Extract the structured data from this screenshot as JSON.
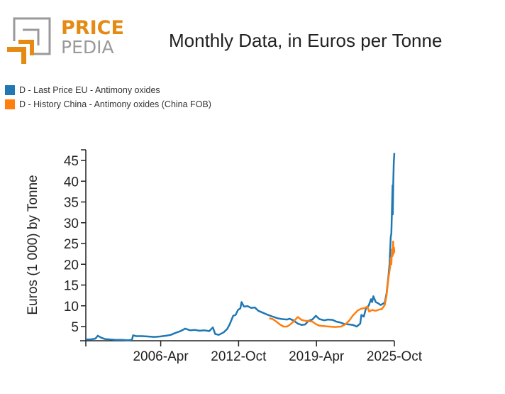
{
  "logo": {
    "line1": "PRICE",
    "line2": "PEDIA"
  },
  "chart_data": {
    "type": "line",
    "title": "Monthly Data, in Euros per Tonne",
    "xlabel": "",
    "ylabel": "Euros (1 000) by Tonne",
    "xlim": [
      2000.0,
      2025.75
    ],
    "ylim": [
      1.6,
      47
    ],
    "x_ticks": [
      {
        "label": "",
        "x": 2000.0
      },
      {
        "label": "2006-Apr",
        "x": 2006.25
      },
      {
        "label": "2012-Oct",
        "x": 2012.75
      },
      {
        "label": "2019-Apr",
        "x": 2019.25
      },
      {
        "label": "2025-Oct",
        "x": 2025.75
      }
    ],
    "y_ticks": [
      5,
      10,
      15,
      20,
      25,
      30,
      35,
      40,
      45
    ],
    "grid": false,
    "legend_position": "top-left",
    "series": [
      {
        "name": "D - Last Price EU - Antimony oxides",
        "color": "#1f77b4",
        "points": [
          [
            2000.0,
            1.9
          ],
          [
            2000.4,
            1.9
          ],
          [
            2000.8,
            2.1
          ],
          [
            2001.0,
            2.8
          ],
          [
            2001.3,
            2.3
          ],
          [
            2001.6,
            2.0
          ],
          [
            2002.0,
            1.9
          ],
          [
            2002.5,
            1.8
          ],
          [
            2003.0,
            1.8
          ],
          [
            2003.5,
            1.7
          ],
          [
            2003.85,
            1.8
          ],
          [
            2003.95,
            2.9
          ],
          [
            2004.2,
            2.7
          ],
          [
            2004.7,
            2.7
          ],
          [
            2005.2,
            2.6
          ],
          [
            2005.7,
            2.5
          ],
          [
            2006.2,
            2.6
          ],
          [
            2006.7,
            2.8
          ],
          [
            2007.1,
            3.0
          ],
          [
            2007.5,
            3.5
          ],
          [
            2007.9,
            3.9
          ],
          [
            2008.3,
            4.5
          ],
          [
            2008.7,
            4.1
          ],
          [
            2009.1,
            4.2
          ],
          [
            2009.5,
            4.0
          ],
          [
            2009.9,
            4.1
          ],
          [
            2010.3,
            3.9
          ],
          [
            2010.6,
            4.8
          ],
          [
            2010.8,
            3.2
          ],
          [
            2011.1,
            3.0
          ],
          [
            2011.5,
            3.6
          ],
          [
            2011.8,
            4.4
          ],
          [
            2012.0,
            5.5
          ],
          [
            2012.3,
            7.6
          ],
          [
            2012.5,
            7.8
          ],
          [
            2012.7,
            9.0
          ],
          [
            2012.9,
            9.4
          ],
          [
            2013.0,
            10.9
          ],
          [
            2013.2,
            9.8
          ],
          [
            2013.5,
            9.9
          ],
          [
            2013.8,
            9.5
          ],
          [
            2014.1,
            9.6
          ],
          [
            2014.4,
            8.8
          ],
          [
            2014.8,
            8.3
          ],
          [
            2015.2,
            7.8
          ],
          [
            2015.6,
            7.4
          ],
          [
            2016.0,
            7.0
          ],
          [
            2016.4,
            6.8
          ],
          [
            2016.8,
            6.7
          ],
          [
            2017.0,
            6.9
          ],
          [
            2017.3,
            6.5
          ],
          [
            2017.7,
            5.7
          ],
          [
            2018.0,
            5.4
          ],
          [
            2018.3,
            5.5
          ],
          [
            2018.6,
            6.4
          ],
          [
            2018.9,
            6.7
          ],
          [
            2019.2,
            7.6
          ],
          [
            2019.5,
            6.8
          ],
          [
            2019.9,
            6.5
          ],
          [
            2020.2,
            6.7
          ],
          [
            2020.6,
            6.6
          ],
          [
            2020.9,
            6.2
          ],
          [
            2021.2,
            6.0
          ],
          [
            2021.6,
            5.6
          ],
          [
            2022.0,
            5.5
          ],
          [
            2022.3,
            5.4
          ],
          [
            2022.6,
            5.0
          ],
          [
            2022.9,
            5.7
          ],
          [
            2023.0,
            7.8
          ],
          [
            2023.2,
            7.4
          ],
          [
            2023.4,
            9.6
          ],
          [
            2023.6,
            10.0
          ],
          [
            2023.8,
            11.6
          ],
          [
            2023.9,
            10.9
          ],
          [
            2024.0,
            12.3
          ],
          [
            2024.2,
            10.9
          ],
          [
            2024.4,
            10.6
          ],
          [
            2024.6,
            10.2
          ],
          [
            2024.8,
            10.5
          ],
          [
            2024.95,
            10.8
          ],
          [
            2025.1,
            13.0
          ],
          [
            2025.25,
            17.0
          ],
          [
            2025.35,
            20.0
          ],
          [
            2025.45,
            26.5
          ],
          [
            2025.5,
            27.5
          ],
          [
            2025.55,
            33.0
          ],
          [
            2025.6,
            39.0
          ],
          [
            2025.62,
            32.0
          ],
          [
            2025.66,
            40.0
          ],
          [
            2025.7,
            44.5
          ],
          [
            2025.72,
            45.5
          ],
          [
            2025.75,
            46.8
          ]
        ]
      },
      {
        "name": "D - History China - Antimony oxides (China FOB)",
        "color": "#ff7f0e",
        "points": [
          [
            2015.3,
            7.0
          ],
          [
            2015.6,
            6.8
          ],
          [
            2015.9,
            6.2
          ],
          [
            2016.2,
            5.5
          ],
          [
            2016.5,
            5.0
          ],
          [
            2016.8,
            5.0
          ],
          [
            2017.1,
            5.6
          ],
          [
            2017.4,
            6.4
          ],
          [
            2017.7,
            7.3
          ],
          [
            2018.0,
            6.6
          ],
          [
            2018.3,
            6.4
          ],
          [
            2018.6,
            6.3
          ],
          [
            2018.9,
            6.2
          ],
          [
            2019.2,
            5.6
          ],
          [
            2019.5,
            5.2
          ],
          [
            2019.9,
            5.1
          ],
          [
            2020.3,
            5.0
          ],
          [
            2020.8,
            4.9
          ],
          [
            2021.3,
            5.0
          ],
          [
            2021.7,
            5.6
          ],
          [
            2022.0,
            6.5
          ],
          [
            2022.3,
            7.7
          ],
          [
            2022.7,
            8.9
          ],
          [
            2023.0,
            9.3
          ],
          [
            2023.3,
            9.5
          ],
          [
            2023.5,
            9.8
          ],
          [
            2023.65,
            8.6
          ],
          [
            2023.9,
            9.0
          ],
          [
            2024.2,
            8.8
          ],
          [
            2024.5,
            9.1
          ],
          [
            2024.7,
            9.2
          ],
          [
            2024.95,
            10.2
          ],
          [
            2025.1,
            12.5
          ],
          [
            2025.25,
            16.5
          ],
          [
            2025.4,
            19.5
          ],
          [
            2025.45,
            21.5
          ],
          [
            2025.5,
            20.0
          ],
          [
            2025.55,
            23.5
          ],
          [
            2025.6,
            22.0
          ],
          [
            2025.65,
            25.5
          ],
          [
            2025.68,
            22.5
          ],
          [
            2025.72,
            24.0
          ],
          [
            2025.75,
            22.8
          ]
        ]
      }
    ]
  }
}
